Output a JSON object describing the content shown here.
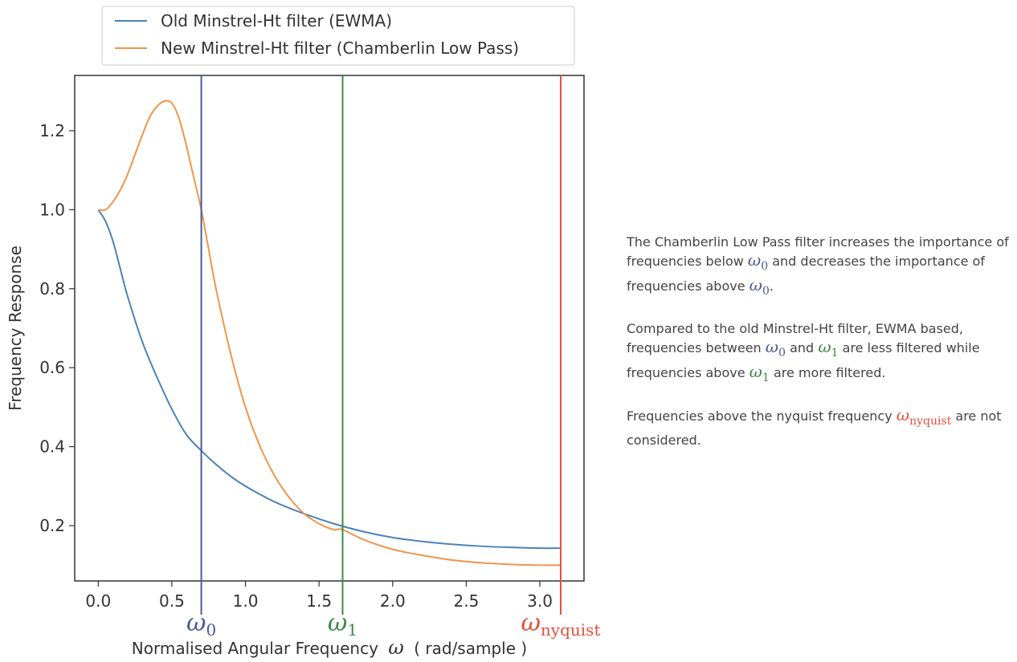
{
  "chart_data": {
    "type": "line",
    "title": "",
    "xlabel": "Normalised Angular Frequency",
    "xlabel_symbol": "ω",
    "xlabel_unit": "( rad/sample )",
    "ylabel": "Frequency Response",
    "xlim": [
      -0.16,
      3.3
    ],
    "ylim": [
      0.06,
      1.34
    ],
    "xticks": [
      "0.0",
      "0.5",
      "1.0",
      "1.5",
      "2.0",
      "2.5",
      "3.0"
    ],
    "xtick_values": [
      0.0,
      0.5,
      1.0,
      1.5,
      2.0,
      2.5,
      3.0
    ],
    "yticks": [
      "0.2",
      "0.4",
      "0.6",
      "0.8",
      "1.0",
      "1.2"
    ],
    "ytick_values": [
      0.2,
      0.4,
      0.6,
      0.8,
      1.0,
      1.2
    ],
    "grid": false,
    "legend_position": "top, above plot",
    "series": [
      {
        "name": "Old Minstrel-Ht filter (EWMA)",
        "color": "#4c82b8",
        "x": [
          0.0,
          0.05,
          0.1,
          0.15,
          0.2,
          0.3,
          0.4,
          0.5,
          0.6,
          0.7,
          0.8,
          0.9,
          1.0,
          1.2,
          1.4,
          1.6,
          1.8,
          2.0,
          2.2,
          2.4,
          2.6,
          2.8,
          3.0,
          3.14159
        ],
        "y": [
          1.0,
          0.97,
          0.92,
          0.85,
          0.78,
          0.665,
          0.575,
          0.495,
          0.43,
          0.39,
          0.355,
          0.325,
          0.3,
          0.26,
          0.23,
          0.205,
          0.185,
          0.17,
          0.16,
          0.153,
          0.148,
          0.145,
          0.143,
          0.143
        ]
      },
      {
        "name": "New Minstrel-Ht filter (Chamberlin Low Pass)",
        "color": "#f0954a",
        "x": [
          0.0,
          0.05,
          0.1,
          0.15,
          0.2,
          0.25,
          0.3,
          0.35,
          0.4,
          0.45,
          0.5,
          0.55,
          0.6,
          0.65,
          0.7,
          0.75,
          0.8,
          0.9,
          1.0,
          1.1,
          1.2,
          1.3,
          1.4,
          1.5,
          1.6,
          1.66,
          1.8,
          2.0,
          2.2,
          2.4,
          2.6,
          2.8,
          3.0,
          3.14159
        ],
        "y": [
          1.0,
          1.0,
          1.02,
          1.05,
          1.09,
          1.14,
          1.19,
          1.235,
          1.262,
          1.275,
          1.27,
          1.23,
          1.16,
          1.08,
          1.0,
          0.9,
          0.8,
          0.635,
          0.5,
          0.4,
          0.325,
          0.27,
          0.23,
          0.205,
          0.19,
          0.19,
          0.165,
          0.14,
          0.125,
          0.113,
          0.106,
          0.102,
          0.1,
          0.1
        ]
      }
    ],
    "vlines": [
      {
        "x": 0.7,
        "color": "#4c5a98",
        "label": "ω",
        "sub": "0"
      },
      {
        "x": 1.66,
        "color": "#3e8a47",
        "label": "ω",
        "sub": "1"
      },
      {
        "x": 3.14159,
        "color": "#e0513c",
        "label": "ω",
        "sub": "nyquist"
      }
    ]
  },
  "notes": {
    "p1": {
      "a": "The Chamberlin Low Pass filter increases the importance of frequencies below",
      "sym1": "ω",
      "sub1": "0",
      "b": "and decreases the importance of frequencies above",
      "sym2": "ω",
      "sub2": "0",
      "c": "."
    },
    "p2": {
      "a": "Compared to the old Minstrel-Ht filter, EWMA based, frequencies between",
      "sym1": "ω",
      "sub1": "0",
      "b": "and",
      "sym2": "ω",
      "sub2": "1",
      "c": "are less filtered while frequencies above",
      "sym3": "ω",
      "sub3": "1",
      "d": "are more filtered."
    },
    "p3": {
      "a": "Frequencies above the nyquist frequency",
      "sym1": "ω",
      "sub1": "nyquist",
      "b": "are not considered."
    },
    "colors": {
      "omega0": "#4c5a98",
      "omega1": "#3e8a47",
      "nyquist": "#e0513c"
    }
  }
}
